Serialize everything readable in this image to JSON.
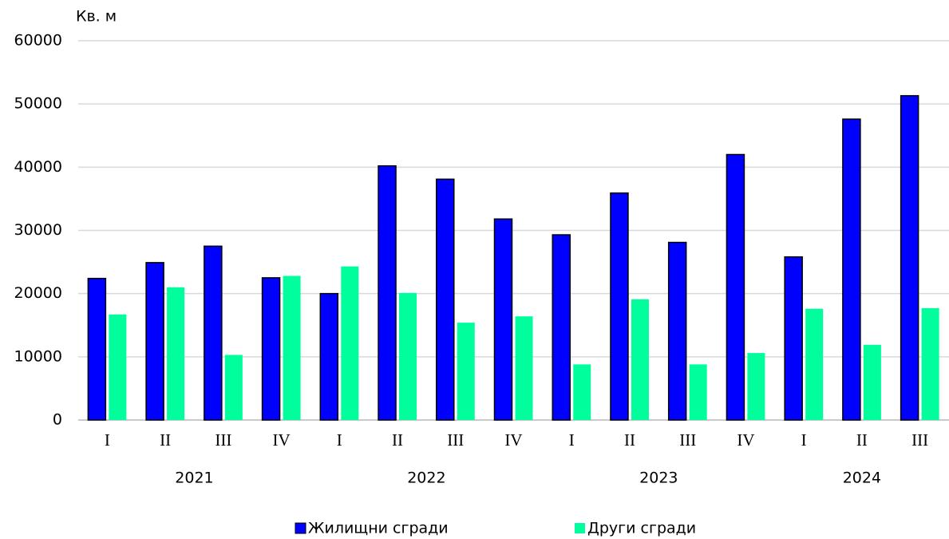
{
  "chart_data": {
    "type": "bar",
    "ylabel": "Кв. м",
    "categories": [
      "I",
      "II",
      "III",
      "IV",
      "I",
      "II",
      "III",
      "IV",
      "I",
      "II",
      "III",
      "IV",
      "I",
      "II",
      "III"
    ],
    "groups": [
      {
        "name": "2021",
        "count": 4
      },
      {
        "name": "2022",
        "count": 4
      },
      {
        "name": "2023",
        "count": 4
      },
      {
        "name": "2024",
        "count": 3
      }
    ],
    "series": [
      {
        "name": "Жилищни сгради",
        "color": "#0000ff",
        "values": [
          22400,
          24900,
          27500,
          22500,
          20000,
          40200,
          38100,
          31800,
          29300,
          35900,
          28100,
          42000,
          25800,
          47600,
          51300
        ]
      },
      {
        "name": "Други сгради",
        "color": "#00ff9c",
        "values": [
          16700,
          21000,
          10300,
          22800,
          24300,
          20100,
          15400,
          16400,
          8800,
          19100,
          8800,
          10600,
          17600,
          11900,
          17700
        ]
      }
    ],
    "ylim": [
      0,
      60000
    ],
    "yticks": [
      0,
      10000,
      20000,
      30000,
      40000,
      50000,
      60000
    ],
    "grid": true,
    "legend": "bottom"
  }
}
